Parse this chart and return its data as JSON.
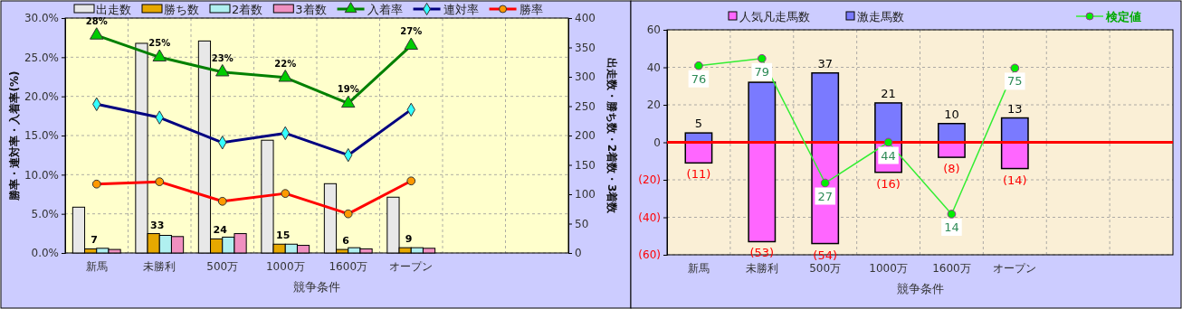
{
  "chart_data": [
    {
      "type": "bar",
      "categories": [
        "新馬",
        "未勝利",
        "500万",
        "1000万",
        "1600万",
        "オープン",
        null,
        null
      ],
      "xlabel": "競争条件",
      "ylabel": "勝率・連対率・入着率(%)",
      "y2label": "出走数・勝ち数・2着数・3着数",
      "ylim": [
        0,
        30
      ],
      "yticks": [
        {
          "value": 0,
          "label": "0.0%"
        },
        {
          "value": 5,
          "label": "5.0%"
        },
        {
          "value": 10,
          "label": "10.0%"
        },
        {
          "value": 15,
          "label": "15.0%"
        },
        {
          "value": 20,
          "label": "20.0%"
        },
        {
          "value": 25,
          "label": "25.0%"
        },
        {
          "value": 30,
          "label": "30.0%"
        }
      ],
      "y2lim": [
        0,
        400
      ],
      "y2ticks": [
        0,
        50,
        100,
        150,
        200,
        250,
        300,
        350,
        400
      ],
      "grid": true,
      "legend": "top",
      "series": [
        {
          "name": "出走数",
          "axis": "y2",
          "color": "#e8e8e8",
          "values": [
            78,
            357,
            361,
            192,
            118,
            95,
            null,
            null
          ]
        },
        {
          "name": "勝ち数",
          "axis": "y2",
          "color": "#e6a800",
          "values": [
            7,
            33,
            24,
            15,
            6,
            9,
            null,
            null
          ],
          "value_labels": [
            "7",
            "33",
            "24",
            "15",
            "6",
            "9",
            null,
            null
          ]
        },
        {
          "name": "2着数",
          "axis": "y2",
          "color": "#b0f0f0",
          "values": [
            8,
            30,
            27,
            15,
            9,
            9,
            null,
            null
          ]
        },
        {
          "name": "3着数",
          "axis": "y2",
          "color": "#f090c0",
          "values": [
            6,
            28,
            33,
            13,
            7,
            8,
            null,
            null
          ]
        },
        {
          "name": "入着率",
          "type": "line",
          "axis": "y",
          "color": "#008000",
          "marker": "triangle",
          "values": [
            27.8,
            25.0,
            23.1,
            22.4,
            19.1,
            26.5,
            null,
            null
          ],
          "value_labels": [
            "28%",
            "25%",
            "23%",
            "22%",
            "19%",
            "27%",
            null,
            null
          ]
        },
        {
          "name": "連対率",
          "type": "line",
          "axis": "y",
          "color": "#000080",
          "marker": "diamond",
          "values": [
            19.0,
            17.3,
            14.1,
            15.3,
            12.5,
            18.3,
            null,
            null
          ]
        },
        {
          "name": "勝率",
          "type": "line",
          "axis": "y",
          "color": "#ff0000",
          "marker": "circle",
          "values": [
            8.8,
            9.1,
            6.6,
            7.6,
            5.0,
            9.2,
            null,
            null
          ]
        }
      ]
    },
    {
      "type": "bar",
      "stacked": true,
      "categories": [
        "新馬",
        "未勝利",
        "500万",
        "1000万",
        "1600万",
        "オープン",
        null,
        null
      ],
      "xlabel": "競争条件",
      "ylim": [
        -60,
        60
      ],
      "yticks": [
        {
          "value": -60,
          "label": "(60)"
        },
        {
          "value": -40,
          "label": "(40)"
        },
        {
          "value": -20,
          "label": "(20)"
        },
        0,
        20,
        40,
        60
      ],
      "y2lim": [
        -3,
        91
      ],
      "grid": true,
      "legend": "top",
      "ref_lines": [
        {
          "axis": "y",
          "value": 0,
          "color": "#ff0000"
        }
      ],
      "series": [
        {
          "name": "人気凡走馬数",
          "color": "#ff66ff",
          "values": [
            -11,
            -53,
            -54,
            -16,
            -8,
            -14,
            null,
            null
          ],
          "value_labels": [
            "(11)",
            "(53)",
            "(54)",
            "(16)",
            "(8)",
            "(14)",
            null,
            null
          ]
        },
        {
          "name": "激走馬数",
          "color": "#7a7aff",
          "values": [
            5,
            32,
            37,
            21,
            10,
            13,
            null,
            null
          ],
          "value_labels": [
            "5",
            null,
            "37",
            "21",
            "10",
            "13",
            null,
            null
          ]
        },
        {
          "name": "検定値",
          "type": "line",
          "axis": "y2",
          "color": "#33ee33",
          "marker": "circle",
          "values": [
            76,
            79,
            27,
            44,
            14,
            75,
            null,
            null
          ],
          "value_labels": [
            "76",
            "79",
            "27",
            "44",
            "14",
            "75",
            null,
            null
          ]
        }
      ]
    }
  ]
}
